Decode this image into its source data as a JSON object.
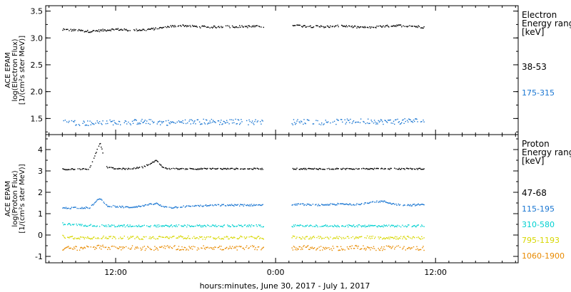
{
  "chart_data": [
    {
      "type": "scatter",
      "ylabel_lines": [
        "ACE EPAM",
        "log(Electron Flux)",
        "[1/(cm²s ster MeV)]"
      ],
      "ylim": [
        1.2,
        3.6
      ],
      "yticks": [
        1.5,
        2.0,
        2.5,
        3.0,
        3.5
      ],
      "ytick_labels": [
        "1.5",
        "2.0",
        "2.5",
        "3.0",
        "3.5"
      ],
      "legend": {
        "title_lines": [
          "Electron",
          "Energy ranges",
          "[keV]"
        ],
        "entries": [
          "38-53",
          "175-315"
        ]
      },
      "series": [
        {
          "name": "38-53",
          "color": "#000000",
          "segments": [
            {
              "x": [
                8.0,
                9.0,
                10.0,
                11.0,
                12.0,
                13.0,
                14.0,
                15.0,
                16.0,
                17.0,
                18.0,
                19.0,
                20.0,
                21.0,
                22.0,
                23.1
              ],
              "y": [
                3.16,
                3.15,
                3.13,
                3.15,
                3.17,
                3.15,
                3.16,
                3.18,
                3.22,
                3.24,
                3.22,
                3.21,
                3.22,
                3.22,
                3.22,
                3.22
              ]
            },
            {
              "x": [
                25.2,
                26.0,
                27.0,
                28.0,
                29.0,
                30.0,
                31.0,
                32.0,
                33.0,
                34.0,
                35.1
              ],
              "y": [
                3.25,
                3.23,
                3.22,
                3.22,
                3.23,
                3.21,
                3.2,
                3.22,
                3.24,
                3.23,
                3.21
              ]
            }
          ],
          "jitter": 0.02
        },
        {
          "name": "175-315",
          "color": "#1976d2",
          "segments": [
            {
              "x": [
                8.0,
                9.0,
                10.0,
                11.0,
                12.0,
                13.0,
                14.0,
                15.0,
                16.0,
                17.0,
                18.0,
                19.0,
                20.0,
                21.0,
                22.0,
                23.1
              ],
              "y": [
                1.44,
                1.43,
                1.42,
                1.43,
                1.44,
                1.44,
                1.45,
                1.44,
                1.43,
                1.44,
                1.45,
                1.45,
                1.44,
                1.45,
                1.44,
                1.45
              ]
            },
            {
              "x": [
                25.2,
                26.0,
                27.0,
                28.0,
                29.0,
                30.0,
                31.0,
                32.0,
                33.0,
                34.0,
                35.1
              ],
              "y": [
                1.44,
                1.45,
                1.44,
                1.44,
                1.45,
                1.45,
                1.46,
                1.45,
                1.45,
                1.46,
                1.47
              ]
            }
          ],
          "jitter": 0.05
        }
      ]
    },
    {
      "type": "scatter",
      "ylabel_lines": [
        "ACE EPAM",
        "log(Proton Flux)",
        "[1/(cm²s ster MeV)]"
      ],
      "ylim": [
        -1.3,
        4.7
      ],
      "yticks": [
        -1,
        0,
        1,
        2,
        3,
        4
      ],
      "ytick_labels": [
        "-1",
        "0",
        "1",
        "2",
        "3",
        "4"
      ],
      "legend": {
        "title_lines": [
          "Proton",
          "Energy ranges",
          "[keV]"
        ],
        "entries": [
          "47-68",
          "115-195",
          "310-580",
          "795-1193",
          "1060-1900"
        ]
      },
      "series": [
        {
          "name": "47-68",
          "color": "#000000",
          "segments": [
            {
              "x": [
                8.0,
                9.0,
                10.0,
                10.8,
                11.3,
                12.0,
                13.0,
                14.0,
                15.0,
                15.6,
                16.0,
                17.0,
                18.0,
                19.0,
                20.0,
                21.0,
                22.0,
                23.1
              ],
              "y": [
                3.1,
                3.1,
                3.12,
                4.35,
                3.2,
                3.12,
                3.12,
                3.2,
                3.5,
                3.15,
                3.12,
                3.12,
                3.12,
                3.12,
                3.12,
                3.12,
                3.12,
                3.12
              ]
            },
            {
              "x": [
                25.2,
                26.0,
                27.0,
                28.0,
                29.0,
                30.0,
                31.0,
                32.0,
                33.0,
                34.0,
                35.1
              ],
              "y": [
                3.12,
                3.12,
                3.12,
                3.12,
                3.12,
                3.12,
                3.12,
                3.12,
                3.12,
                3.12,
                3.12
              ]
            }
          ],
          "jitter": 0.03
        },
        {
          "name": "115-195",
          "color": "#1976d2",
          "segments": [
            {
              "x": [
                8.0,
                9.0,
                10.0,
                10.8,
                11.3,
                12.0,
                13.0,
                14.0,
                15.0,
                15.6,
                16.0,
                17.0,
                18.0,
                19.0,
                20.0,
                21.0,
                22.0,
                23.1
              ],
              "y": [
                1.28,
                1.3,
                1.3,
                1.75,
                1.4,
                1.35,
                1.32,
                1.38,
                1.5,
                1.32,
                1.3,
                1.35,
                1.38,
                1.4,
                1.42,
                1.42,
                1.42,
                1.45
              ]
            },
            {
              "x": [
                25.2,
                26.0,
                27.0,
                28.0,
                29.0,
                30.0,
                31.0,
                32.0,
                33.0,
                34.0,
                35.1
              ],
              "y": [
                1.45,
                1.45,
                1.42,
                1.45,
                1.48,
                1.45,
                1.55,
                1.6,
                1.45,
                1.42,
                1.45
              ]
            }
          ],
          "jitter": 0.04
        },
        {
          "name": "310-580",
          "color": "#00d0d0",
          "segments": [
            {
              "x": [
                8.0,
                9.0,
                10.0,
                11.0,
                12.0,
                13.0,
                14.0,
                15.0,
                16.0,
                17.0,
                18.0,
                19.0,
                20.0,
                21.0,
                22.0,
                23.1
              ],
              "y": [
                0.55,
                0.5,
                0.48,
                0.45,
                0.45,
                0.45,
                0.45,
                0.45,
                0.45,
                0.45,
                0.45,
                0.45,
                0.45,
                0.45,
                0.45,
                0.45
              ]
            },
            {
              "x": [
                25.2,
                26.0,
                27.0,
                28.0,
                29.0,
                30.0,
                31.0,
                32.0,
                33.0,
                34.0,
                35.1
              ],
              "y": [
                0.45,
                0.45,
                0.45,
                0.45,
                0.45,
                0.45,
                0.45,
                0.45,
                0.45,
                0.45,
                0.45
              ]
            }
          ],
          "jitter": 0.05
        },
        {
          "name": "795-1193",
          "color": "#d7d700",
          "segments": [
            {
              "x": [
                8.0,
                9.0,
                10.0,
                11.0,
                12.0,
                13.0,
                14.0,
                15.0,
                16.0,
                17.0,
                18.0,
                19.0,
                20.0,
                21.0,
                22.0,
                23.1
              ],
              "y": [
                -0.05,
                -0.1,
                -0.1,
                -0.08,
                -0.1,
                -0.1,
                -0.12,
                -0.1,
                -0.1,
                -0.08,
                -0.1,
                -0.12,
                -0.1,
                -0.1,
                -0.1,
                -0.1
              ]
            },
            {
              "x": [
                25.2,
                26.0,
                27.0,
                28.0,
                29.0,
                30.0,
                31.0,
                32.0,
                33.0,
                34.0,
                35.1
              ],
              "y": [
                -0.08,
                -0.1,
                -0.1,
                -0.12,
                -0.1,
                -0.1,
                -0.08,
                -0.1,
                -0.1,
                -0.1,
                -0.12
              ]
            }
          ],
          "jitter": 0.07
        },
        {
          "name": "1060-1900",
          "color": "#e88a00",
          "segments": [
            {
              "x": [
                8.0,
                9.0,
                10.0,
                11.0,
                12.0,
                13.0,
                14.0,
                15.0,
                16.0,
                17.0,
                18.0,
                19.0,
                20.0,
                21.0,
                22.0,
                23.1
              ],
              "y": [
                -0.6,
                -0.6,
                -0.55,
                -0.55,
                -0.6,
                -0.55,
                -0.6,
                -0.6,
                -0.55,
                -0.6,
                -0.6,
                -0.55,
                -0.6,
                -0.6,
                -0.55,
                -0.6
              ]
            },
            {
              "x": [
                25.2,
                26.0,
                27.0,
                28.0,
                29.0,
                30.0,
                31.0,
                32.0,
                33.0,
                34.0,
                35.1
              ],
              "y": [
                -0.6,
                -0.55,
                -0.6,
                -0.6,
                -0.6,
                -0.55,
                -0.6,
                -0.6,
                -0.55,
                -0.6,
                -0.6
              ]
            }
          ],
          "jitter": 0.1
        }
      ]
    }
  ],
  "x_axis": {
    "xlim": [
      6.75,
      42.2
    ],
    "ticks": [
      12,
      24,
      36
    ],
    "tick_labels": [
      "12:00",
      "0:00",
      "12:00"
    ],
    "minor_step": 1,
    "label": "hours:minutes, June 30, 2017 - July  1, 2017"
  }
}
